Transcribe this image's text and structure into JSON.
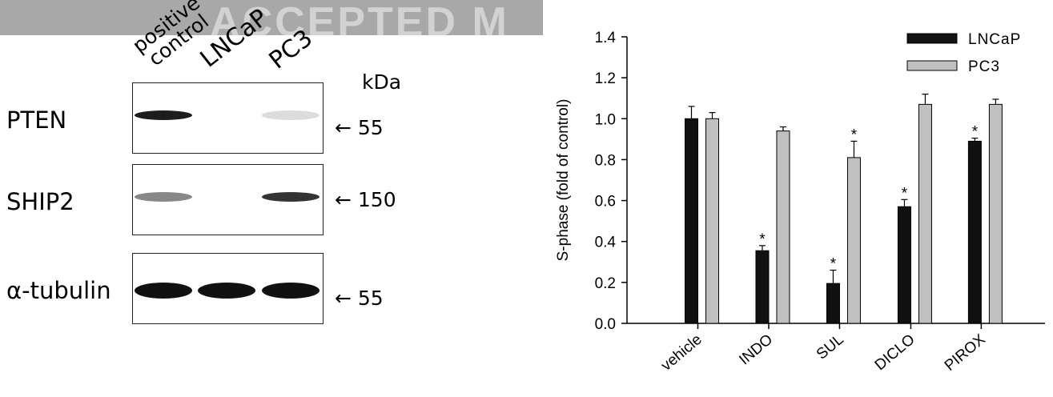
{
  "blot": {
    "watermark": "ACCEPTED M",
    "lanes": [
      "positive\ncontrol",
      "LNCaP",
      "PC3"
    ],
    "unit_label": "kDa",
    "proteins": [
      {
        "name": "PTEN",
        "mw": "← 55",
        "bands": [
          0.95,
          0.0,
          0.05
        ]
      },
      {
        "name": "SHIP2",
        "mw": "← 150",
        "bands": [
          0.5,
          0.0,
          0.85
        ]
      },
      {
        "name": "α-tubulin",
        "mw": "← 55",
        "bands": [
          1.0,
          1.0,
          1.0
        ]
      }
    ]
  },
  "chart_data": {
    "type": "bar",
    "categories": [
      "vehicle",
      "INDO",
      "SUL",
      "DICLO",
      "PIROX"
    ],
    "ylabel": "S-phase (fold of control)",
    "ylim": [
      0,
      1.4
    ],
    "yticks": [
      "0.0",
      "0.2",
      "0.4",
      "0.6",
      "0.8",
      "1.0",
      "1.2",
      "1.4"
    ],
    "series": [
      {
        "name": "LNCaP",
        "color": "#111111",
        "values": [
          1.0,
          0.355,
          0.195,
          0.57,
          0.89
        ],
        "errors": [
          0.06,
          0.025,
          0.065,
          0.035,
          0.015
        ],
        "significant": [
          false,
          true,
          true,
          true,
          true
        ]
      },
      {
        "name": "PC3",
        "color": "#c0c0c0",
        "values": [
          1.0,
          0.94,
          0.81,
          1.07,
          1.07
        ],
        "errors": [
          0.03,
          0.02,
          0.08,
          0.05,
          0.025
        ],
        "significant": [
          false,
          false,
          true,
          false,
          false
        ]
      }
    ],
    "significance_marker": "*",
    "legend_position": "top-right"
  }
}
